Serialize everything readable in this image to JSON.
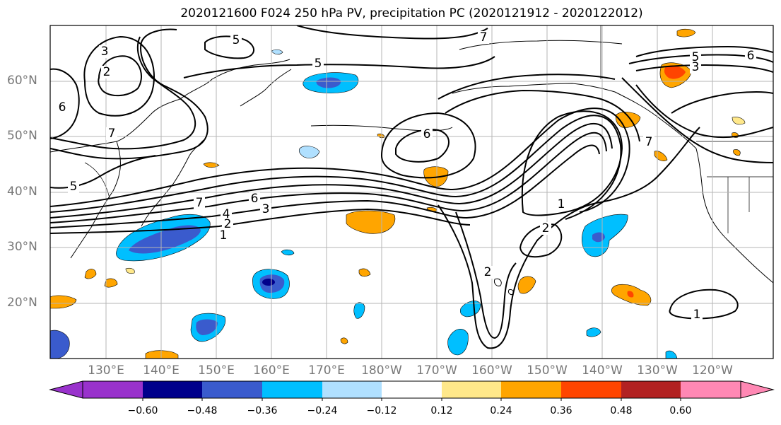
{
  "title": "2020121600 F024 250 hPa PV, precipitation PC (2020121912 - 2020122012)",
  "lat_labels": [
    "60°N",
    "50°N",
    "40°N",
    "30°N",
    "20°N"
  ],
  "lon_labels": [
    "130°E",
    "140°E",
    "150°E",
    "160°E",
    "170°E",
    "180°W",
    "170°W",
    "160°W",
    "150°W",
    "140°W",
    "130°W",
    "120°W"
  ],
  "colorbar": {
    "ticks": [
      "−0.60",
      "−0.48",
      "−0.36",
      "−0.24",
      "−0.12",
      "0.12",
      "0.24",
      "0.36",
      "0.48",
      "0.60"
    ],
    "colors": [
      "#9932cc",
      "#00008b",
      "#3a5bcd",
      "#00bfff",
      "#b0e0ff",
      "#ffffff",
      "#ffe88a",
      "#ffa500",
      "#ff4500",
      "#b22222",
      "#ff88b4"
    ]
  },
  "contour_labels": [
    "3",
    "2",
    "6",
    "5",
    "5",
    "7",
    "7",
    "5",
    "3",
    "6",
    "5",
    "6",
    "7",
    "7",
    "6",
    "4",
    "3",
    "2",
    "1",
    "1",
    "2",
    "2",
    "1"
  ]
}
